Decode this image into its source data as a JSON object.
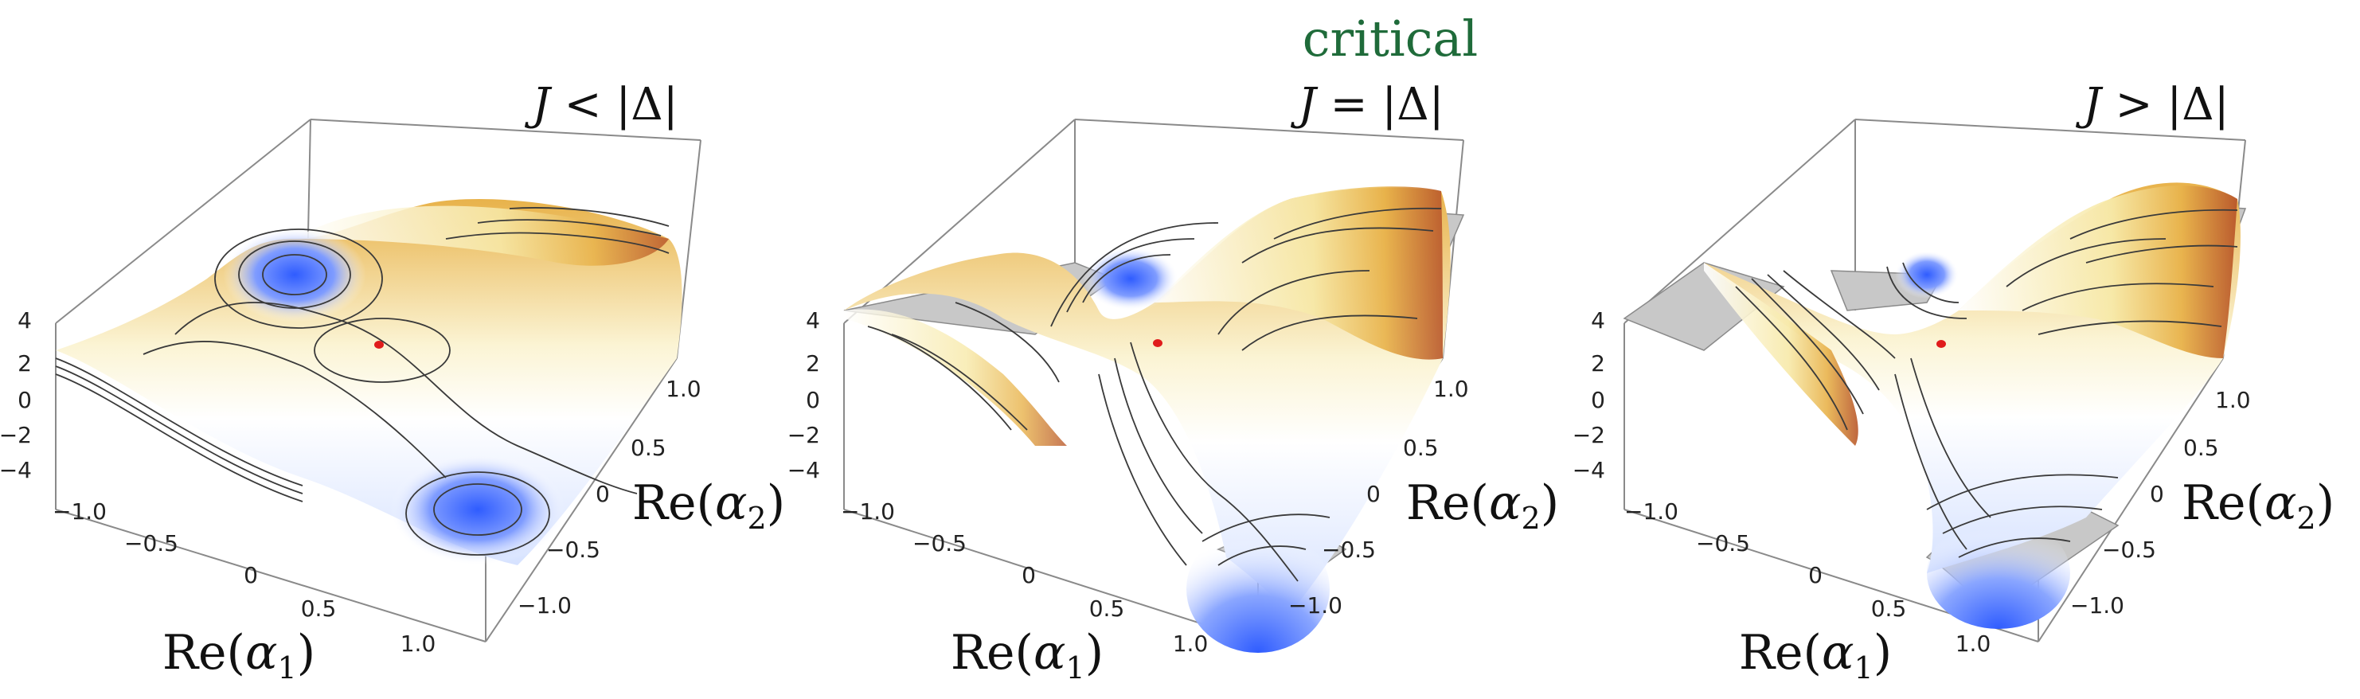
{
  "header": {
    "critical_label": "critical",
    "critical_color": "#1f6b3a"
  },
  "colors": {
    "box": "#8a8a8a",
    "contour": "#3a3a3a",
    "low": "#2f5cff",
    "high": "#a4281a",
    "floor": "#c8c8c8",
    "min_point": "#e01c1c"
  },
  "chart_data": [
    {
      "type": "surface3d",
      "panel": "left",
      "title": "J < |Δ|",
      "title_parts": [
        "J",
        " < |Δ|"
      ],
      "xlabel": "Re(α₁)",
      "ylabel": "Re(α₂)",
      "label_parts": {
        "re": "Re(",
        "alpha": "α",
        "sub1": "1",
        "sub2": "2",
        "close": ")"
      },
      "x_ticks": [
        "−1.0",
        "−0.5",
        "0",
        "0.5",
        "1.0"
      ],
      "y_ticks": [
        "1.0",
        "0.5",
        "0",
        "−0.5",
        "−1.0"
      ],
      "z_ticks": [
        "4",
        "2",
        "0",
        "−2",
        "−4"
      ],
      "xlim": [
        -1.0,
        1.0
      ],
      "ylim": [
        -1.0,
        1.0
      ],
      "zlim": [
        -4,
        4
      ],
      "surface": "double-well",
      "marker": {
        "x": 0,
        "y": 0,
        "color": "#e01c1c"
      }
    },
    {
      "type": "surface3d",
      "panel": "middle",
      "title": "J = |Δ|",
      "title_parts": [
        "J",
        " = |Δ|"
      ],
      "xlabel": "Re(α₁)",
      "ylabel": "Re(α₂)",
      "label_parts": {
        "re": "Re(",
        "alpha": "α",
        "sub1": "1",
        "sub2": "2",
        "close": ")"
      },
      "x_ticks": [
        "−1.0",
        "−0.5",
        "0",
        "0.5",
        "1.0"
      ],
      "y_ticks": [
        "1.0",
        "0.5",
        "0",
        "−0.5",
        "−1.0"
      ],
      "z_ticks": [
        "4",
        "2",
        "0",
        "−2",
        "−4"
      ],
      "xlim": [
        -1.0,
        1.0
      ],
      "ylim": [
        -1.0,
        1.0
      ],
      "zlim": [
        -4,
        4
      ],
      "surface": "critical saddle",
      "marker": {
        "x": 0,
        "y": 0,
        "color": "#e01c1c"
      }
    },
    {
      "type": "surface3d",
      "panel": "right",
      "title": "J > |Δ|",
      "title_parts": [
        "J",
        " > |Δ|"
      ],
      "xlabel": "Re(α₁)",
      "ylabel": "Re(α₂)",
      "label_parts": {
        "re": "Re(",
        "alpha": "α",
        "sub1": "1",
        "sub2": "2",
        "close": ")"
      },
      "x_ticks": [
        "−1.0",
        "−0.5",
        "0",
        "0.5",
        "1.0"
      ],
      "y_ticks": [
        "1.0",
        "0.5",
        "0",
        "−0.5",
        "−1.0"
      ],
      "z_ticks": [
        "4",
        "2",
        "0",
        "−2",
        "−4"
      ],
      "xlim": [
        -1.0,
        1.0
      ],
      "ylim": [
        -1.0,
        1.0
      ],
      "zlim": [
        -4,
        4
      ],
      "surface": "single minimum",
      "marker": {
        "x": 0,
        "y": 0,
        "color": "#e01c1c"
      }
    }
  ]
}
